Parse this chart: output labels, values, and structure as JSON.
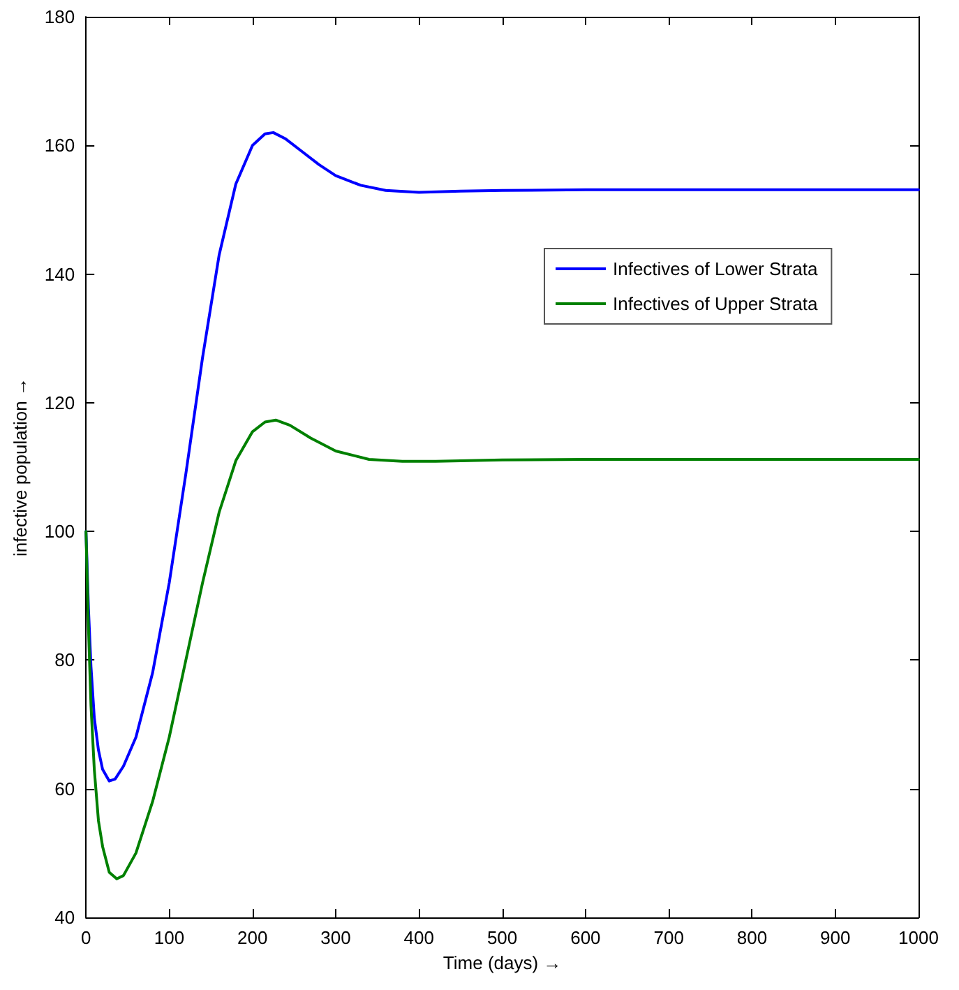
{
  "chart_data": {
    "type": "line",
    "xlabel": "Time (days) →",
    "ylabel": "infective population →",
    "xlim": [
      0,
      1000
    ],
    "xticks": [
      0,
      100,
      200,
      300,
      400,
      500,
      600,
      700,
      800,
      900,
      1000
    ],
    "ylim": [
      40,
      180
    ],
    "yticks": [
      40,
      60,
      80,
      100,
      120,
      140,
      160,
      180
    ],
    "grid": false,
    "legend": "top right",
    "marker": "none",
    "line_style": "solid",
    "series": [
      {
        "name": "Infectives of Lower Strata",
        "color": "#0000ff",
        "x": [
          0,
          3,
          6,
          10,
          15,
          20,
          28,
          35,
          45,
          60,
          80,
          100,
          120,
          140,
          160,
          180,
          200,
          215,
          225,
          240,
          260,
          280,
          300,
          330,
          360,
          400,
          450,
          500,
          600,
          700,
          800,
          900,
          1000
        ],
        "values": [
          100,
          88,
          79,
          71,
          66,
          63,
          61.2,
          61.5,
          63.5,
          68,
          78,
          92,
          109,
          127,
          143,
          154,
          160,
          161.8,
          162,
          161,
          159,
          157,
          155.3,
          153.8,
          153,
          152.7,
          152.9,
          153,
          153.1,
          153.1,
          153.1,
          153.1,
          153.1
        ]
      },
      {
        "name": "Infectives of Upper Strata",
        "color": "#008000",
        "x": [
          0,
          3,
          6,
          10,
          15,
          20,
          28,
          37,
          45,
          60,
          80,
          100,
          120,
          140,
          160,
          180,
          200,
          215,
          228,
          245,
          270,
          300,
          340,
          380,
          420,
          500,
          600,
          700,
          800,
          900,
          1000
        ],
        "values": [
          100,
          85,
          73,
          63,
          55,
          51,
          47,
          46,
          46.5,
          50,
          58,
          68,
          80,
          92,
          103,
          111,
          115.5,
          117,
          117.3,
          116.5,
          114.5,
          112.5,
          111.2,
          110.9,
          110.9,
          111.1,
          111.2,
          111.2,
          111.2,
          111.2,
          111.2
        ]
      }
    ]
  }
}
